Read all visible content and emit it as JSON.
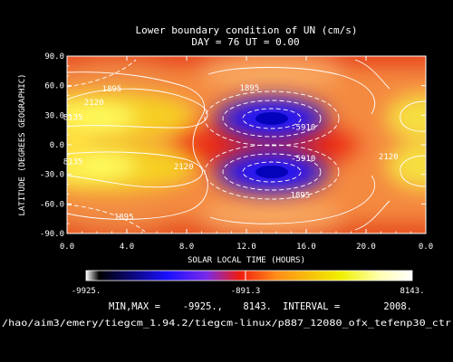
{
  "figure": {
    "title_line1": "Lower boundary condition of UN (cm/s)",
    "title_line2": "DAY =  76   UT =   0.00",
    "minmax_label": "MIN,MAX =",
    "min_text": "-9925.,",
    "max_text": "8143.",
    "interval_label": "INTERVAL =",
    "interval_text": "2008.",
    "file_path": "/hao/aim3/emery/tiegcm_1.94.2/tiegcm-linux/p887_12080_ofx_tefenp30_ctr",
    "colorbar_left": "-9925.",
    "colorbar_mid": "-891.3",
    "colorbar_right": "8143."
  },
  "chart_data": {
    "type": "heatmap",
    "title": "Lower boundary condition of UN (cm/s)",
    "subtitle": "DAY =  76   UT =   0.00",
    "xlabel": "SOLAR LOCAL TIME (HOURS)",
    "ylabel": "LATITUDE (DEGREES GEOGRAPHIC)",
    "xlim": [
      0,
      24
    ],
    "ylim": [
      -90,
      90
    ],
    "x_ticks": [
      "0.0",
      "4.0",
      "8.0",
      "12.0",
      "16.0",
      "20.0",
      "0.0"
    ],
    "y_ticks": [
      "-90.0",
      "-60.0",
      "-30.0",
      "0.0",
      "30.0",
      "60.0",
      "90.0"
    ],
    "min": -9925,
    "max": 8143,
    "interval": 2008,
    "colorbar_range": [
      -9925,
      8143
    ],
    "contour_labels": [
      {
        "text": "1895",
        "x": 3.0,
        "y": 57
      },
      {
        "text": "2120",
        "x": 1.8,
        "y": 43
      },
      {
        "text": "8135",
        "x": 0.4,
        "y": 28
      },
      {
        "text": "8135",
        "x": 0.4,
        "y": -17
      },
      {
        "text": "2120",
        "x": 7.8,
        "y": -22
      },
      {
        "text": "1895",
        "x": 3.8,
        "y": -73
      },
      {
        "text": "1895",
        "x": 12.2,
        "y": 58
      },
      {
        "text": "-5910",
        "x": 15.8,
        "y": 18
      },
      {
        "text": "-5910",
        "x": 15.8,
        "y": -14
      },
      {
        "text": "1895",
        "x": 15.6,
        "y": -51
      },
      {
        "text": "2120",
        "x": 21.5,
        "y": -12
      }
    ],
    "features": [
      {
        "kind": "max",
        "x": 2.0,
        "y": 25
      },
      {
        "kind": "max",
        "x": 2.0,
        "y": -21
      },
      {
        "kind": "min",
        "x": 13.7,
        "y": 27
      },
      {
        "kind": "min",
        "x": 13.7,
        "y": -27
      },
      {
        "kind": "max",
        "x": 23.6,
        "y": 25
      },
      {
        "kind": "max",
        "x": 23.6,
        "y": -22
      }
    ]
  }
}
